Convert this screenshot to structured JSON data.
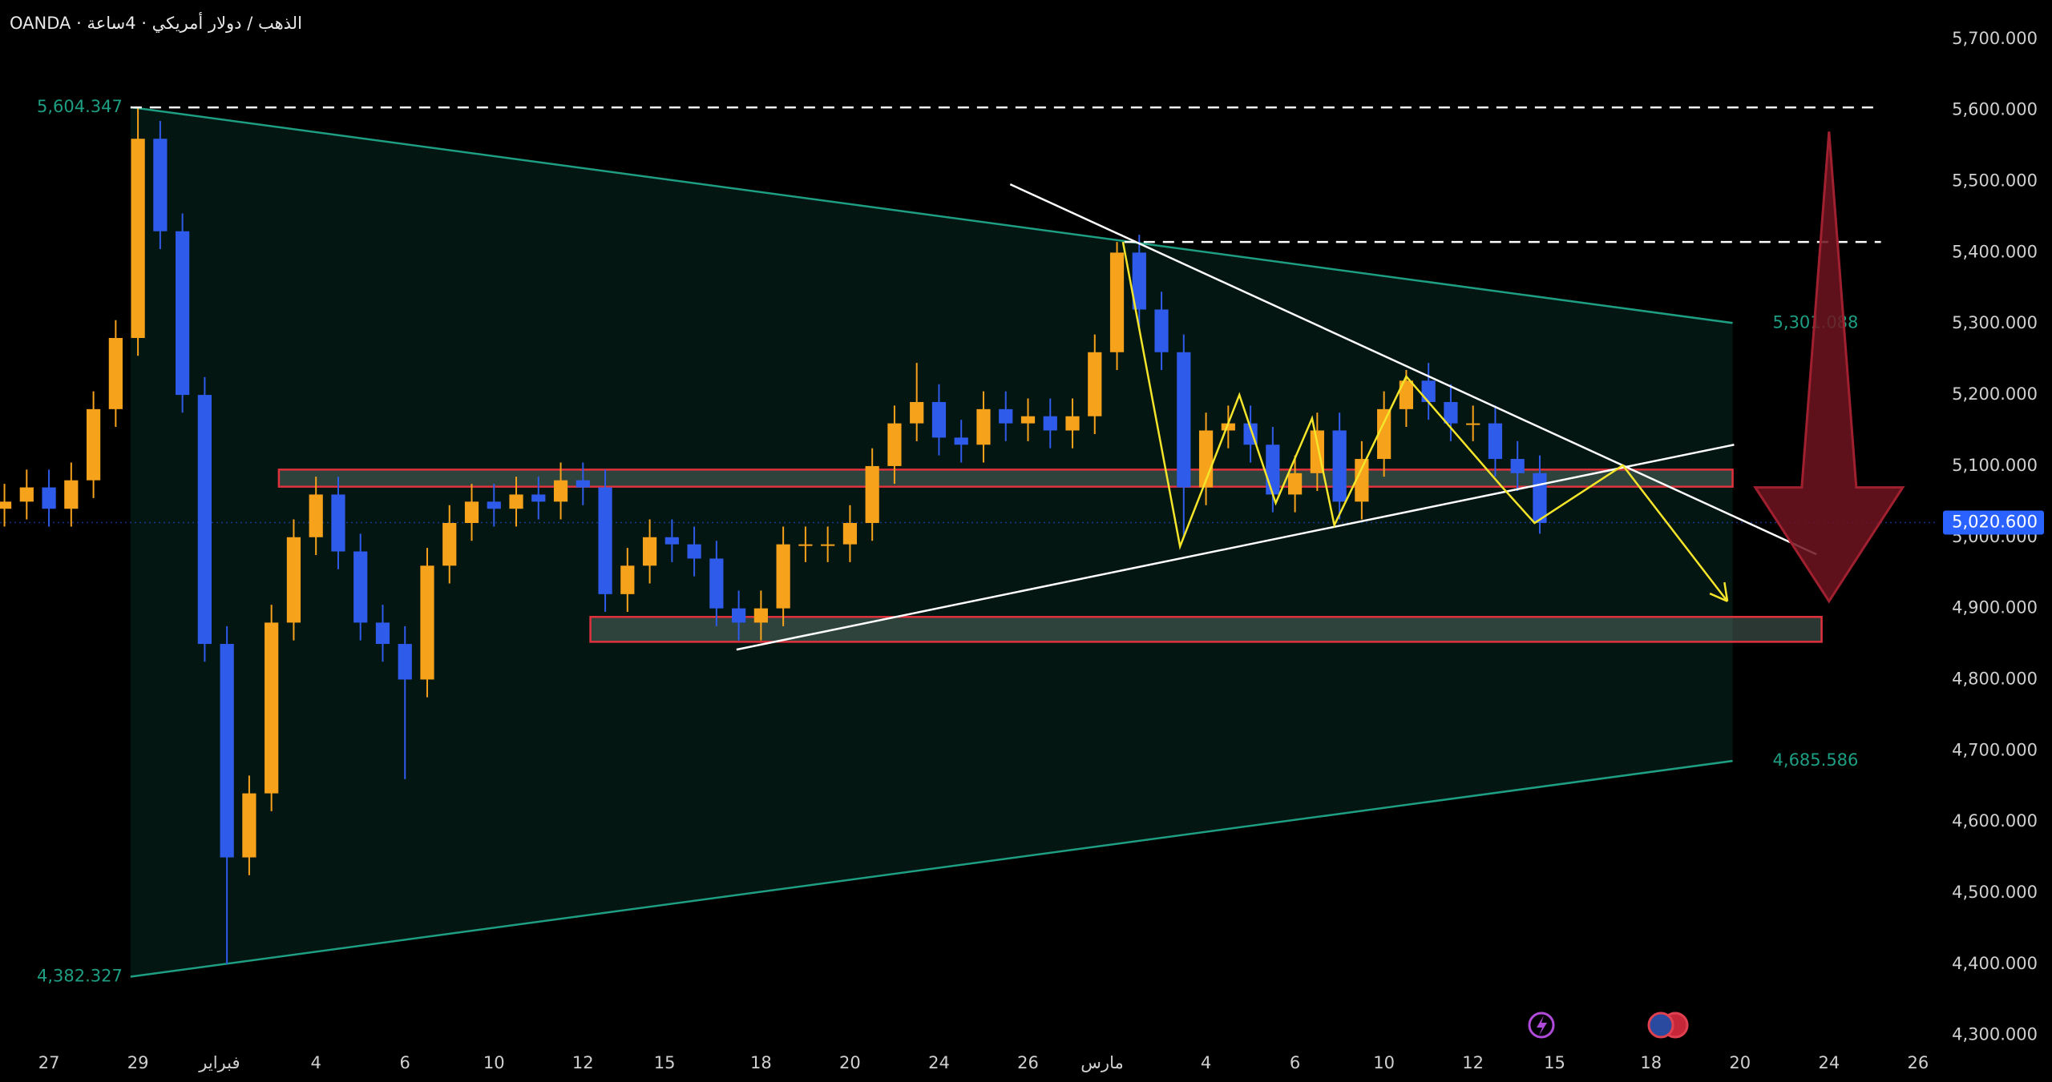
{
  "chart_data": {
    "type": "candlestick",
    "title": "OANDA · الذهب / دولار أمريكي · 4ساعة",
    "x": [
      -17,
      -14,
      -11,
      -8,
      -5,
      -2,
      1,
      4,
      7,
      10,
      13,
      16,
      19,
      22,
      25,
      28,
      31,
      34,
      37,
      40,
      43,
      46,
      49,
      52,
      55,
      58,
      61,
      64,
      67,
      70,
      73,
      76,
      79,
      82,
      85,
      88,
      91,
      94,
      97,
      100,
      103,
      106,
      109,
      112,
      115,
      118,
      121,
      124,
      127,
      130,
      133,
      136,
      139,
      142,
      145,
      148,
      151,
      154,
      157,
      160,
      163,
      166,
      169,
      172,
      175,
      178,
      181,
      184,
      187,
      190
    ],
    "open": [
      5040,
      5050,
      5070,
      5040,
      5080,
      5180,
      5280,
      5560,
      5430,
      5200,
      4850,
      4550,
      4640,
      4880,
      5000,
      5060,
      4980,
      4880,
      4850,
      4800,
      4960,
      5020,
      5050,
      5040,
      5060,
      5050,
      5080,
      5070,
      4920,
      4960,
      5000,
      4990,
      4970,
      4900,
      4880,
      4900,
      4990,
      4990,
      4990,
      5020,
      5100,
      5160,
      5190,
      5140,
      5130,
      5180,
      5160,
      5170,
      5150,
      5170,
      5260,
      5400,
      5320,
      5260,
      5070,
      5150,
      5160,
      5130,
      5060,
      5090,
      5150,
      5050,
      5110,
      5180,
      5220,
      5190,
      5160,
      5160,
      5110,
      5090
    ],
    "high": [
      5075,
      5095,
      5095,
      5105,
      5205,
      5305,
      5604,
      5585,
      5455,
      5225,
      4875,
      4665,
      4905,
      5025,
      5085,
      5085,
      5005,
      4905,
      4875,
      4985,
      5045,
      5075,
      5075,
      5085,
      5085,
      5105,
      5105,
      5095,
      4985,
      5025,
      5025,
      5015,
      4995,
      4925,
      4925,
      5015,
      5015,
      5015,
      5045,
      5125,
      5185,
      5245,
      5215,
      5165,
      5205,
      5205,
      5195,
      5195,
      5195,
      5285,
      5415,
      5425,
      5345,
      5285,
      5175,
      5185,
      5185,
      5155,
      5115,
      5175,
      5175,
      5135,
      5205,
      5235,
      5245,
      5215,
      5185,
      5185,
      5135,
      5115
    ],
    "low": [
      5015,
      5025,
      5015,
      5015,
      5055,
      5155,
      5255,
      5405,
      5175,
      4825,
      4400,
      4525,
      4615,
      4855,
      4975,
      4955,
      4855,
      4825,
      4660,
      4775,
      4935,
      4995,
      5015,
      5015,
      5025,
      5025,
      5045,
      4895,
      4895,
      4935,
      4965,
      4945,
      4875,
      4855,
      4855,
      4875,
      4965,
      4965,
      4965,
      4995,
      5075,
      5135,
      5115,
      5105,
      5105,
      5135,
      5135,
      5125,
      5125,
      5145,
      5235,
      5295,
      5235,
      5000,
      5045,
      5125,
      5105,
      5035,
      5035,
      5065,
      5025,
      5025,
      5085,
      5155,
      5165,
      5135,
      5135,
      5085,
      5065,
      5005
    ],
    "close": [
      5050,
      5070,
      5040,
      5080,
      5180,
      5280,
      5560,
      5430,
      5200,
      4850,
      4550,
      4640,
      4880,
      5000,
      5060,
      4980,
      4880,
      4850,
      4800,
      4960,
      5020,
      5050,
      5040,
      5060,
      5050,
      5080,
      5070,
      4920,
      4960,
      5000,
      4990,
      4970,
      4900,
      4880,
      4900,
      4990,
      4990,
      4990,
      5020,
      5100,
      5160,
      5190,
      5140,
      5130,
      5180,
      5160,
      5170,
      5150,
      5170,
      5260,
      5400,
      5320,
      5260,
      5070,
      5150,
      5160,
      5130,
      5060,
      5090,
      5150,
      5050,
      5110,
      5180,
      5220,
      5190,
      5160,
      5160,
      5110,
      5090,
      5020
    ],
    "up_color": "#f7a21b",
    "down_color": "#2f5bea",
    "xlim": [
      -17.6,
      243.5
    ],
    "xticks": [
      {
        "value": -11,
        "label": "27"
      },
      {
        "value": 1,
        "label": "29"
      },
      {
        "value": 12,
        "label": "فبراير"
      },
      {
        "value": 25,
        "label": "4"
      },
      {
        "value": 37,
        "label": "6"
      },
      {
        "value": 49,
        "label": "10"
      },
      {
        "value": 61,
        "label": "12"
      },
      {
        "value": 72,
        "label": "15"
      },
      {
        "value": 85,
        "label": "18"
      },
      {
        "value": 97,
        "label": "20"
      },
      {
        "value": 109,
        "label": "24"
      },
      {
        "value": 121,
        "label": "26"
      },
      {
        "value": 131,
        "label": "مارس"
      },
      {
        "value": 145,
        "label": "4"
      },
      {
        "value": 157,
        "label": "6"
      },
      {
        "value": 169,
        "label": "10"
      },
      {
        "value": 181,
        "label": "12"
      },
      {
        "value": 192,
        "label": "15"
      },
      {
        "value": 205,
        "label": "18"
      },
      {
        "value": 217,
        "label": "20"
      },
      {
        "value": 229,
        "label": "24"
      },
      {
        "value": 241,
        "label": "26"
      }
    ],
    "ylim": [
      4285,
      5755
    ],
    "yticks": [
      {
        "value": 4300,
        "label": "4,300.000"
      },
      {
        "value": 4400,
        "label": "4,400.000"
      },
      {
        "value": 4500,
        "label": "4,500.000"
      },
      {
        "value": 4600,
        "label": "4,600.000"
      },
      {
        "value": 4700,
        "label": "4,700.000"
      },
      {
        "value": 4800,
        "label": "4,800.000"
      },
      {
        "value": 4900,
        "label": "4,900.000"
      },
      {
        "value": 5000,
        "label": "5,000.000"
      },
      {
        "value": 5100,
        "label": "5,100.000"
      },
      {
        "value": 5200,
        "label": "5,200.000"
      },
      {
        "value": 5300,
        "label": "5,300.000"
      },
      {
        "value": 5400,
        "label": "5,400.000"
      },
      {
        "value": 5500,
        "label": "5,500.000"
      },
      {
        "value": 5600,
        "label": "5,600.000"
      },
      {
        "value": 5700,
        "label": "5,700.000"
      }
    ],
    "last_price": {
      "value": 5020.6,
      "label": "5,020.600",
      "color": "#2962ff"
    },
    "triangle": {
      "start": 0,
      "end": 216,
      "color": "#1e9e82",
      "upper": [
        {
          "value": 5604.347,
          "label": "5,604.347"
        },
        {
          "value": 5301.088,
          "label": "5,301.088"
        }
      ],
      "lower": [
        {
          "value": 4382.327,
          "label": "4,382.327"
        },
        {
          "value": 4685.586,
          "label": "4,685.586"
        }
      ]
    },
    "levels": [
      {
        "price": 5604,
        "from": 0,
        "to": 236
      },
      {
        "price": 5415,
        "from": 134,
        "to": 236
      }
    ],
    "zones": [
      {
        "top": 5095,
        "bottom": 5071,
        "from": 20,
        "to": 216
      },
      {
        "top": 4888,
        "bottom": 4853,
        "from": 62,
        "to": 228
      }
    ],
    "trendlines": [
      {
        "x": [
          118.6,
          227.3
        ],
        "y": [
          5496,
          4976
        ]
      },
      {
        "x": [
          81.7,
          216.2
        ],
        "y": [
          4842,
          5130
        ]
      }
    ],
    "path": {
      "color": "#f5e52a",
      "x": [
        133.8,
        141.5,
        149.5,
        154.4,
        159.3,
        162.3,
        172,
        184.8,
        189.3,
        201.2,
        215.3
      ],
      "y": [
        5415,
        4987,
        5200,
        5048,
        5167,
        5017,
        5226,
        5072,
        5020,
        5101,
        4910
      ]
    },
    "arrow": {
      "x": 229,
      "top": 5570,
      "head": 5070,
      "tip": 4910,
      "color": "#6e1420"
    }
  }
}
